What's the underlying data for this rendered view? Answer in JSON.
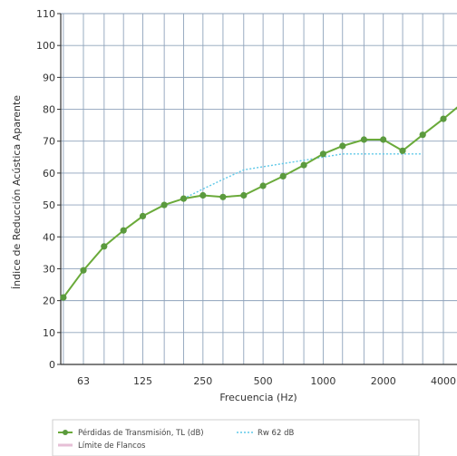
{
  "chart_data": {
    "type": "line",
    "title": "",
    "xlabel": "Frecuencia (Hz)",
    "ylabel": "Índice de Reducción Acústica Aparente",
    "ylim": [
      0,
      110
    ],
    "yticks": [
      0,
      10,
      20,
      30,
      40,
      50,
      60,
      70,
      80,
      90,
      100,
      110
    ],
    "x_labels": [
      "63",
      "125",
      "250",
      "500",
      "1000",
      "2000",
      "4000"
    ],
    "grid": true,
    "legend_position": "bottom-left",
    "series": [
      {
        "name": "Pérdidas de Transmisión, TL (dB)",
        "color": "#6aaa3a",
        "marker_color": "#5b9a3e",
        "x": [
          50,
          63,
          80,
          100,
          125,
          160,
          200,
          250,
          315,
          400,
          500,
          630,
          800,
          1000,
          1250,
          1600,
          2000,
          2500,
          3150,
          4000,
          5000
        ],
        "values": [
          21,
          29.5,
          37,
          42,
          46.5,
          50,
          52,
          53,
          52.5,
          53,
          56,
          59,
          62.5,
          66,
          68.5,
          70.5,
          70.5,
          67,
          72,
          77,
          82
        ]
      },
      {
        "name": "Rw 62 dB",
        "color": "#5ec8e8",
        "style": "dotted",
        "x": [
          200,
          250,
          315,
          400,
          500,
          630,
          800,
          1000,
          1250,
          1600,
          2000,
          2500,
          3150
        ],
        "values": [
          52,
          55,
          58,
          61,
          62,
          63,
          64,
          65,
          66,
          66,
          66,
          66,
          66
        ]
      },
      {
        "name": "Límite de Flancos",
        "color": "#e6bfd6",
        "x": [],
        "values": []
      }
    ]
  }
}
